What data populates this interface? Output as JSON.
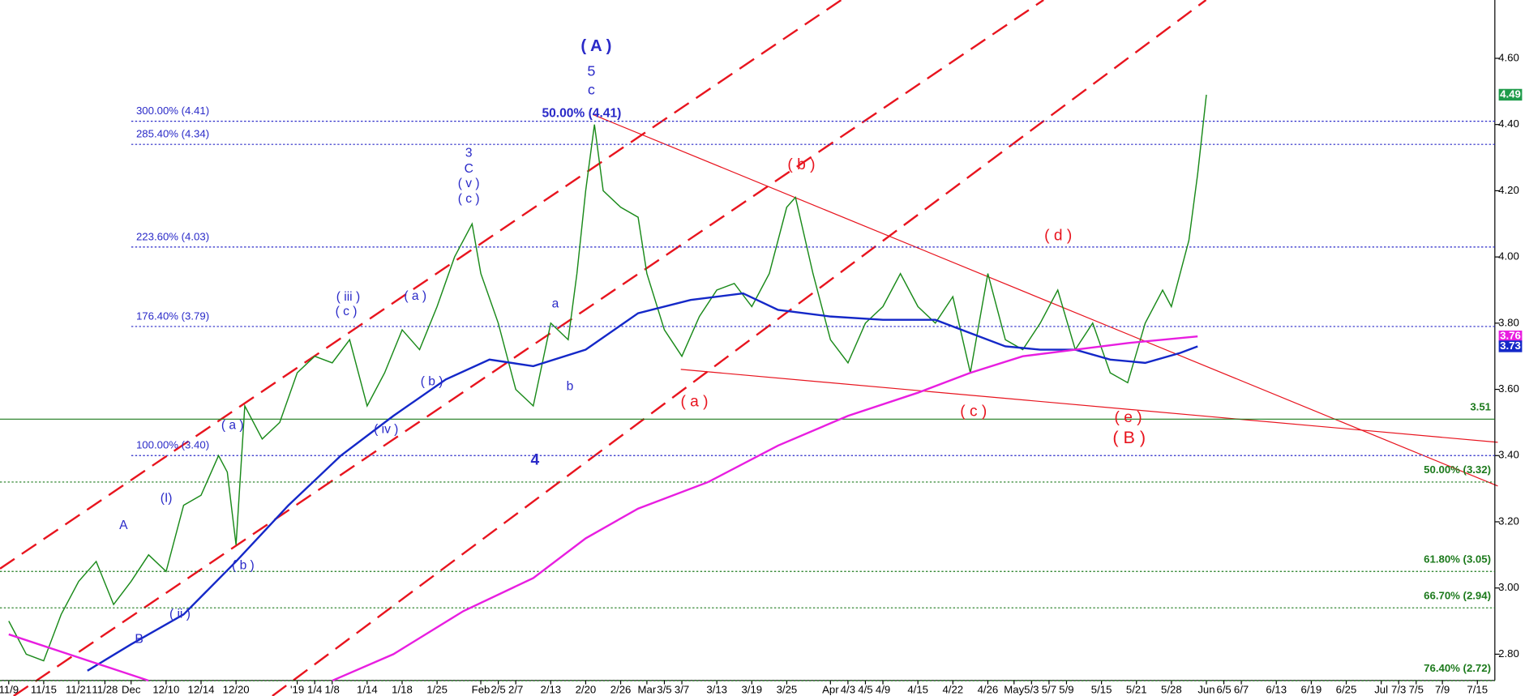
{
  "chart_data": {
    "type": "line",
    "xlim": [
      -1,
      170
    ],
    "ylim": [
      2.7,
      4.7
    ],
    "xticks": [
      {
        "value": 0,
        "label": "11/9"
      },
      {
        "value": 4,
        "label": "11/15"
      },
      {
        "value": 8,
        "label": "11/21"
      },
      {
        "value": 11,
        "label": "11/28"
      },
      {
        "value": 14,
        "label": "Dec"
      },
      {
        "value": 18,
        "label": "12/10"
      },
      {
        "value": 22,
        "label": "12/14"
      },
      {
        "value": 26,
        "label": "12/20"
      },
      {
        "value": 33,
        "label": "'19"
      },
      {
        "value": 35,
        "label": "1/4"
      },
      {
        "value": 37,
        "label": "1/8"
      },
      {
        "value": 41,
        "label": "1/14"
      },
      {
        "value": 45,
        "label": "1/18"
      },
      {
        "value": 49,
        "label": "1/25"
      },
      {
        "value": 54,
        "label": "Feb"
      },
      {
        "value": 56,
        "label": "2/5"
      },
      {
        "value": 58,
        "label": "2/7"
      },
      {
        "value": 62,
        "label": "2/13"
      },
      {
        "value": 66,
        "label": "2/20"
      },
      {
        "value": 70,
        "label": "2/26"
      },
      {
        "value": 73,
        "label": "Mar"
      },
      {
        "value": 75,
        "label": "3/5"
      },
      {
        "value": 77,
        "label": "3/7"
      },
      {
        "value": 81,
        "label": "3/13"
      },
      {
        "value": 85,
        "label": "3/19"
      },
      {
        "value": 89,
        "label": "3/25"
      },
      {
        "value": 94,
        "label": "Apr"
      },
      {
        "value": 96,
        "label": "4/3"
      },
      {
        "value": 98,
        "label": "4/5"
      },
      {
        "value": 100,
        "label": "4/9"
      },
      {
        "value": 104,
        "label": "4/15"
      },
      {
        "value": 108,
        "label": "4/22"
      },
      {
        "value": 112,
        "label": "4/26"
      },
      {
        "value": 115,
        "label": "May"
      },
      {
        "value": 117,
        "label": "5/3"
      },
      {
        "value": 119,
        "label": "5/7"
      },
      {
        "value": 121,
        "label": "5/9"
      },
      {
        "value": 125,
        "label": "5/15"
      },
      {
        "value": 129,
        "label": "5/21"
      },
      {
        "value": 133,
        "label": "5/28"
      },
      {
        "value": 137,
        "label": "Jun"
      },
      {
        "value": 139,
        "label": "6/5"
      },
      {
        "value": 141,
        "label": "6/7"
      },
      {
        "value": 145,
        "label": "6/13"
      },
      {
        "value": 149,
        "label": "6/19"
      },
      {
        "value": 153,
        "label": "6/25"
      },
      {
        "value": 157,
        "label": "Jul"
      },
      {
        "value": 159,
        "label": "7/3"
      },
      {
        "value": 161,
        "label": "7/5"
      },
      {
        "value": 164,
        "label": "7/9"
      },
      {
        "value": 168,
        "label": "7/15"
      }
    ],
    "yticks": [
      {
        "value": 4.6,
        "label": "4.60"
      },
      {
        "value": 4.4,
        "label": "4.40"
      },
      {
        "value": 4.2,
        "label": "4.20"
      },
      {
        "value": 4.0,
        "label": "4.00"
      },
      {
        "value": 3.8,
        "label": "3.80"
      },
      {
        "value": 3.6,
        "label": "3.60"
      },
      {
        "value": 3.4,
        "label": "3.40"
      },
      {
        "value": 3.2,
        "label": "3.20"
      },
      {
        "value": 3.0,
        "label": "3.00"
      },
      {
        "value": 2.8,
        "label": "2.80"
      }
    ],
    "series": [
      {
        "color": "#1a8a1a",
        "x": [
          0,
          2,
          4,
          6,
          8,
          10,
          12,
          14,
          16,
          18,
          20,
          22,
          24,
          25,
          26,
          27,
          29,
          31,
          33,
          35,
          37,
          39,
          41,
          43,
          45,
          47,
          49,
          51,
          53,
          54,
          56,
          58,
          60,
          62,
          64,
          65,
          66,
          67,
          68,
          70,
          72,
          73,
          75,
          77,
          79,
          81,
          83,
          85,
          87,
          89,
          90,
          92,
          94,
          96,
          98,
          100,
          102,
          104,
          106,
          108,
          110,
          112,
          114,
          116,
          118,
          120,
          122,
          124,
          126,
          128,
          130,
          132,
          133,
          134,
          135,
          136,
          137
        ],
        "values": [
          2.9,
          2.8,
          2.78,
          2.92,
          3.02,
          3.08,
          2.95,
          3.02,
          3.1,
          3.05,
          3.25,
          3.28,
          3.4,
          3.35,
          3.13,
          3.55,
          3.45,
          3.5,
          3.65,
          3.7,
          3.68,
          3.75,
          3.55,
          3.65,
          3.78,
          3.72,
          3.85,
          4.0,
          4.1,
          3.95,
          3.8,
          3.6,
          3.55,
          3.8,
          3.75,
          3.95,
          4.2,
          4.4,
          4.2,
          4.15,
          4.12,
          3.95,
          3.78,
          3.7,
          3.82,
          3.9,
          3.92,
          3.85,
          3.95,
          4.15,
          4.18,
          3.95,
          3.75,
          3.68,
          3.8,
          3.85,
          3.95,
          3.85,
          3.8,
          3.88,
          3.65,
          3.95,
          3.75,
          3.72,
          3.8,
          3.9,
          3.72,
          3.8,
          3.65,
          3.62,
          3.8,
          3.9,
          3.85,
          3.95,
          4.05,
          4.25,
          4.49
        ]
      },
      {
        "color": "#1428c8",
        "x": [
          9,
          14,
          20,
          26,
          32,
          38,
          44,
          50,
          55,
          60,
          66,
          72,
          78,
          84,
          88,
          94,
          100,
          106,
          110,
          114,
          118,
          122,
          126,
          130,
          134,
          136
        ],
        "values": [
          2.75,
          2.83,
          2.92,
          3.08,
          3.25,
          3.4,
          3.52,
          3.63,
          3.69,
          3.67,
          3.72,
          3.83,
          3.87,
          3.89,
          3.84,
          3.82,
          3.81,
          3.81,
          3.77,
          3.73,
          3.72,
          3.72,
          3.69,
          3.68,
          3.71,
          3.73
        ]
      },
      {
        "color": "#e81ee0",
        "x": [
          0,
          8,
          16,
          26,
          37,
          44,
          52,
          60,
          66,
          72,
          80,
          88,
          96,
          104,
          110,
          116,
          122,
          128,
          136
        ],
        "values": [
          2.86,
          2.79,
          2.72,
          null,
          2.72,
          2.8,
          2.93,
          3.03,
          3.15,
          3.24,
          3.32,
          3.43,
          3.52,
          3.59,
          3.65,
          3.7,
          3.72,
          3.74,
          3.76
        ]
      }
    ],
    "levels": [
      {
        "label": "300.00% (4.41)",
        "value": 4.41,
        "color": "#2a2ac8",
        "side": "left"
      },
      {
        "label": "285.40% (4.34)",
        "value": 4.34,
        "color": "#2a2ac8",
        "side": "left"
      },
      {
        "label": "223.60% (4.03)",
        "value": 4.03,
        "color": "#2a2ac8",
        "side": "left"
      },
      {
        "label": "176.40% (3.79)",
        "value": 3.79,
        "color": "#2a2ac8",
        "side": "left"
      },
      {
        "label": "100.00% (3.40)",
        "value": 3.4,
        "color": "#2a2ac8",
        "side": "left"
      },
      {
        "label": "50.00% (3.32)",
        "value": 3.32,
        "color": "#1c7a1c",
        "side": "right"
      },
      {
        "label": "61.80% (3.05)",
        "value": 3.05,
        "color": "#1c7a1c",
        "side": "right"
      },
      {
        "label": "66.70% (2.94)",
        "value": 2.94,
        "color": "#1c7a1c",
        "side": "right"
      },
      {
        "label": "76.40% (2.72)",
        "value": 2.72,
        "color": "#1c7a1c",
        "side": "right"
      },
      {
        "label": "3.51",
        "value": 3.51,
        "color": "#1c7a1c",
        "side": "right",
        "solid": true
      }
    ],
    "price_tags": [
      {
        "value": 4.49,
        "color": "#1e9b4a"
      },
      {
        "value": 3.76,
        "color": "#e81ee0"
      },
      {
        "value": 3.73,
        "color": "#1428c8"
      }
    ],
    "annotations": [
      "50.00% (4.41)",
      "( A )",
      "5",
      "c",
      "3",
      "C",
      "( v )",
      "( c )",
      "( iii )",
      "( c )",
      "( a )",
      "( b )",
      "( iv )",
      "a",
      "b",
      "4",
      "( a )",
      "(I)",
      "A",
      "( b )",
      "( ii )",
      "B",
      "( b )",
      "( d )",
      "( a )",
      "( c )",
      "( e )",
      "( B )"
    ]
  }
}
